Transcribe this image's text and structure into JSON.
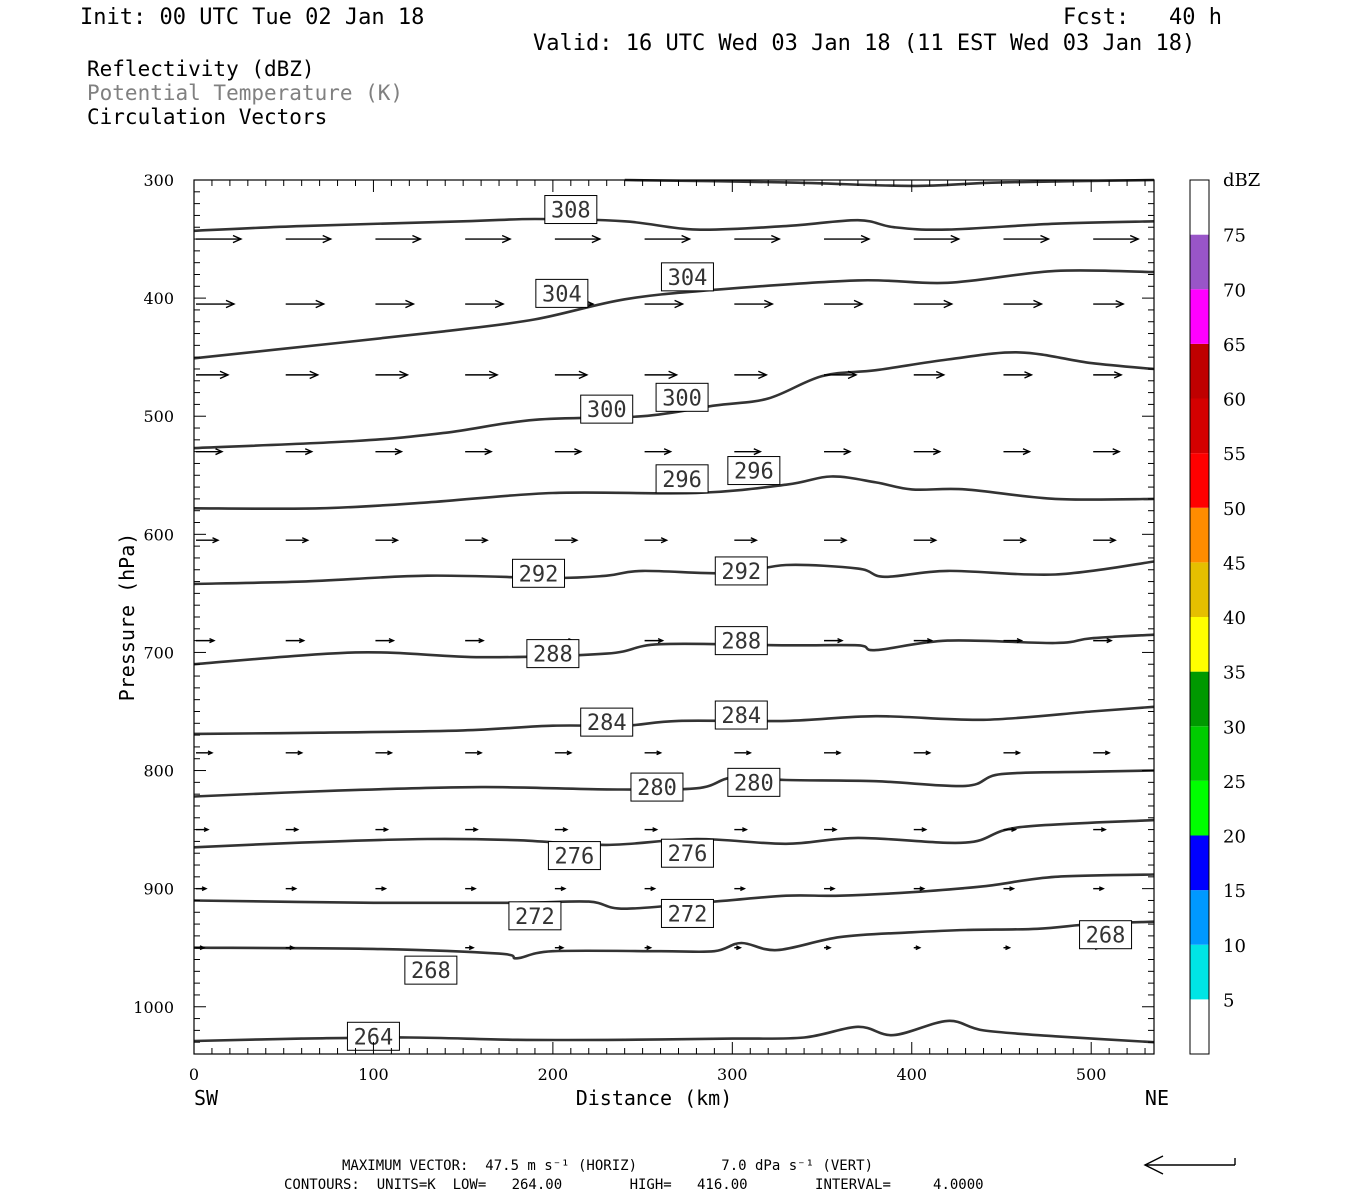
{
  "header": {
    "init": "Init: 00 UTC Tue 02 Jan 18",
    "fcst": "Fcst:   40 h",
    "valid": "Valid: 16 UTC Wed 03 Jan 18 (11 EST Wed 03 Jan 18)"
  },
  "legend": {
    "line1": "Reflectivity (dBZ)",
    "line2": "Potential Temperature (K)",
    "line3": "Circulation Vectors"
  },
  "footer": {
    "max_vector": "MAXIMUM VECTOR:  47.5 m s⁻¹ (HORIZ)          7.0 dPa s⁻¹ (VERT)",
    "contours": "CONTOURS:  UNITS=K  LOW=   264.00        HIGH=   416.00        INTERVAL=     4.0000"
  },
  "colors": {
    "contour": "#333333",
    "gray_text": "#808080",
    "dbz": [
      "#ffffff",
      "#00e5e5",
      "#0099ff",
      "#0000ff",
      "#00ff00",
      "#00cc00",
      "#009900",
      "#ffff00",
      "#e5bf00",
      "#ff8c00",
      "#ff0000",
      "#d40000",
      "#bf0000",
      "#ff00ff",
      "#9955c8",
      "#ffffff"
    ]
  },
  "chart_data": {
    "type": "cross-section",
    "xlabel": "Distance (km)",
    "ylabel": "Pressure (hPa)",
    "xlim": [
      0,
      535
    ],
    "ylim": [
      1040,
      300
    ],
    "x_ticks": [
      0,
      100,
      200,
      300,
      400,
      500
    ],
    "y_ticks": [
      300,
      400,
      500,
      600,
      700,
      800,
      900,
      1000
    ],
    "x_end_labels": [
      "SW",
      "NE"
    ],
    "colorbar": {
      "title": "dBZ",
      "levels": [
        5,
        10,
        15,
        20,
        25,
        30,
        35,
        40,
        45,
        50,
        55,
        60,
        65,
        70,
        75
      ]
    },
    "contours": [
      {
        "level": 264,
        "points": [
          [
            0,
            1029
          ],
          [
            60,
            1027
          ],
          [
            120,
            1026
          ],
          [
            180,
            1028
          ],
          [
            240,
            1028
          ],
          [
            300,
            1027
          ],
          [
            340,
            1026
          ],
          [
            370,
            1017
          ],
          [
            390,
            1024
          ],
          [
            420,
            1012
          ],
          [
            440,
            1020
          ],
          [
            480,
            1025
          ],
          [
            535,
            1030
          ]
        ]
      },
      {
        "level": 268,
        "points": [
          [
            0,
            950
          ],
          [
            100,
            951
          ],
          [
            170,
            955
          ],
          [
            180,
            959
          ],
          [
            200,
            953
          ],
          [
            260,
            953
          ],
          [
            290,
            953
          ],
          [
            305,
            946
          ],
          [
            325,
            952
          ],
          [
            360,
            941
          ],
          [
            400,
            937
          ],
          [
            430,
            935
          ],
          [
            470,
            934
          ],
          [
            500,
            930
          ],
          [
            535,
            928
          ]
        ]
      },
      {
        "level": 272,
        "points": [
          [
            0,
            910
          ],
          [
            100,
            912
          ],
          [
            180,
            912
          ],
          [
            220,
            911
          ],
          [
            240,
            917
          ],
          [
            290,
            911
          ],
          [
            330,
            906
          ],
          [
            360,
            906
          ],
          [
            400,
            903
          ],
          [
            440,
            898
          ],
          [
            480,
            890
          ],
          [
            535,
            888
          ]
        ]
      },
      {
        "level": 276,
        "points": [
          [
            0,
            865
          ],
          [
            60,
            861
          ],
          [
            130,
            858
          ],
          [
            180,
            859
          ],
          [
            230,
            863
          ],
          [
            280,
            858
          ],
          [
            330,
            862
          ],
          [
            370,
            857
          ],
          [
            430,
            861
          ],
          [
            460,
            848
          ],
          [
            535,
            842
          ]
        ]
      },
      {
        "level": 280,
        "points": [
          [
            0,
            822
          ],
          [
            80,
            817
          ],
          [
            160,
            814
          ],
          [
            230,
            816
          ],
          [
            280,
            815
          ],
          [
            300,
            806
          ],
          [
            330,
            808
          ],
          [
            380,
            809
          ],
          [
            430,
            813
          ],
          [
            450,
            803
          ],
          [
            500,
            801
          ],
          [
            535,
            800
          ]
        ]
      },
      {
        "level": 284,
        "points": [
          [
            0,
            769
          ],
          [
            70,
            768
          ],
          [
            150,
            766
          ],
          [
            200,
            762
          ],
          [
            240,
            762
          ],
          [
            270,
            758
          ],
          [
            330,
            758
          ],
          [
            380,
            754
          ],
          [
            440,
            757
          ],
          [
            500,
            750
          ],
          [
            535,
            746
          ]
        ]
      },
      {
        "level": 288,
        "points": [
          [
            0,
            710
          ],
          [
            90,
            700
          ],
          [
            160,
            704
          ],
          [
            230,
            701
          ],
          [
            260,
            693
          ],
          [
            330,
            694
          ],
          [
            370,
            694
          ],
          [
            380,
            698
          ],
          [
            420,
            690
          ],
          [
            480,
            692
          ],
          [
            500,
            688
          ],
          [
            535,
            685
          ]
        ]
      },
      {
        "level": 292,
        "points": [
          [
            0,
            642
          ],
          [
            60,
            640
          ],
          [
            130,
            635
          ],
          [
            200,
            637
          ],
          [
            230,
            635
          ],
          [
            250,
            631
          ],
          [
            300,
            633
          ],
          [
            330,
            626
          ],
          [
            370,
            629
          ],
          [
            385,
            636
          ],
          [
            420,
            631
          ],
          [
            480,
            634
          ],
          [
            535,
            623
          ]
        ]
      },
      {
        "level": 296,
        "points": [
          [
            0,
            578
          ],
          [
            70,
            578
          ],
          [
            130,
            573
          ],
          [
            200,
            565
          ],
          [
            280,
            565
          ],
          [
            330,
            558
          ],
          [
            355,
            551
          ],
          [
            380,
            556
          ],
          [
            400,
            562
          ],
          [
            430,
            562
          ],
          [
            480,
            570
          ],
          [
            535,
            570
          ]
        ]
      },
      {
        "level": 300,
        "points": [
          [
            0,
            527
          ],
          [
            90,
            521
          ],
          [
            140,
            514
          ],
          [
            190,
            503
          ],
          [
            250,
            500
          ],
          [
            290,
            491
          ],
          [
            320,
            485
          ],
          [
            350,
            466
          ],
          [
            380,
            461
          ],
          [
            420,
            452
          ],
          [
            460,
            446
          ],
          [
            500,
            455
          ],
          [
            535,
            460
          ]
        ]
      },
      {
        "level": 304,
        "points": [
          [
            0,
            451
          ],
          [
            80,
            438
          ],
          [
            140,
            428
          ],
          [
            190,
            418
          ],
          [
            240,
            401
          ],
          [
            290,
            393
          ],
          [
            370,
            385
          ],
          [
            420,
            387
          ],
          [
            480,
            377
          ],
          [
            535,
            378
          ]
        ]
      },
      {
        "level": 308,
        "points": [
          [
            0,
            343
          ],
          [
            60,
            339
          ],
          [
            150,
            335
          ],
          [
            190,
            333
          ],
          [
            240,
            335
          ],
          [
            280,
            342
          ],
          [
            330,
            339
          ],
          [
            370,
            334
          ],
          [
            390,
            340
          ],
          [
            420,
            342
          ],
          [
            480,
            337
          ],
          [
            535,
            335
          ]
        ]
      },
      {
        "level": 312,
        "points": [
          [
            240,
            300
          ],
          [
            330,
            302
          ],
          [
            400,
            305
          ],
          [
            450,
            302
          ],
          [
            535,
            300
          ]
        ]
      }
    ],
    "contour_labels": [
      {
        "level": 308,
        "x": 210,
        "p": 325
      },
      {
        "level": 304,
        "x": 205,
        "p": 396
      },
      {
        "level": 304,
        "x": 275,
        "p": 382
      },
      {
        "level": 300,
        "x": 230,
        "p": 494
      },
      {
        "level": 300,
        "x": 272,
        "p": 484
      },
      {
        "level": 296,
        "x": 272,
        "p": 553
      },
      {
        "level": 296,
        "x": 312,
        "p": 546
      },
      {
        "level": 292,
        "x": 192,
        "p": 633
      },
      {
        "level": 292,
        "x": 305,
        "p": 631
      },
      {
        "level": 288,
        "x": 200,
        "p": 701
      },
      {
        "level": 288,
        "x": 305,
        "p": 690
      },
      {
        "level": 284,
        "x": 230,
        "p": 759
      },
      {
        "level": 284,
        "x": 305,
        "p": 753
      },
      {
        "level": 280,
        "x": 258,
        "p": 814
      },
      {
        "level": 280,
        "x": 312,
        "p": 810
      },
      {
        "level": 276,
        "x": 212,
        "p": 872
      },
      {
        "level": 276,
        "x": 275,
        "p": 870
      },
      {
        "level": 272,
        "x": 190,
        "p": 923
      },
      {
        "level": 272,
        "x": 275,
        "p": 921
      },
      {
        "level": 268,
        "x": 132,
        "p": 969
      },
      {
        "level": 268,
        "x": 508,
        "p": 939
      },
      {
        "level": 264,
        "x": 100,
        "p": 1025
      }
    ],
    "vectors": [
      [
        0,
        350,
        45,
        0
      ],
      [
        50,
        350,
        45,
        0
      ],
      [
        100,
        350,
        45,
        0
      ],
      [
        150,
        350,
        45,
        0
      ],
      [
        200,
        350,
        45,
        0
      ],
      [
        250,
        350,
        45,
        0
      ],
      [
        300,
        350,
        45,
        0
      ],
      [
        350,
        350,
        45,
        0
      ],
      [
        400,
        350,
        45,
        0
      ],
      [
        450,
        350,
        45,
        0
      ],
      [
        500,
        350,
        45,
        0
      ],
      [
        0,
        405,
        38,
        0
      ],
      [
        50,
        405,
        38,
        0
      ],
      [
        100,
        405,
        38,
        0
      ],
      [
        150,
        405,
        38,
        0
      ],
      [
        200,
        405,
        38,
        0
      ],
      [
        250,
        405,
        38,
        0
      ],
      [
        300,
        405,
        38,
        0
      ],
      [
        350,
        405,
        38,
        0
      ],
      [
        400,
        405,
        38,
        0
      ],
      [
        450,
        405,
        38,
        0
      ],
      [
        500,
        405,
        30,
        0
      ],
      [
        0,
        465,
        32,
        0
      ],
      [
        50,
        465,
        32,
        0
      ],
      [
        100,
        465,
        32,
        0
      ],
      [
        150,
        465,
        32,
        0
      ],
      [
        200,
        465,
        32,
        0
      ],
      [
        250,
        465,
        32,
        0
      ],
      [
        300,
        465,
        32,
        0
      ],
      [
        350,
        465,
        32,
        0
      ],
      [
        400,
        465,
        30,
        0
      ],
      [
        450,
        465,
        28,
        0
      ],
      [
        500,
        465,
        28,
        0
      ],
      [
        0,
        530,
        26,
        0
      ],
      [
        50,
        530,
        26,
        0
      ],
      [
        100,
        530,
        26,
        0
      ],
      [
        150,
        530,
        26,
        0
      ],
      [
        200,
        530,
        26,
        0
      ],
      [
        250,
        530,
        26,
        0
      ],
      [
        300,
        530,
        26,
        0
      ],
      [
        350,
        530,
        26,
        0
      ],
      [
        400,
        530,
        26,
        0
      ],
      [
        450,
        530,
        26,
        0
      ],
      [
        500,
        530,
        26,
        0
      ],
      [
        0,
        605,
        22,
        0
      ],
      [
        50,
        605,
        22,
        0
      ],
      [
        100,
        605,
        22,
        0
      ],
      [
        150,
        605,
        22,
        0
      ],
      [
        200,
        605,
        22,
        0
      ],
      [
        250,
        605,
        22,
        0
      ],
      [
        300,
        605,
        22,
        0
      ],
      [
        350,
        605,
        22,
        0
      ],
      [
        400,
        605,
        22,
        0
      ],
      [
        450,
        605,
        22,
        0
      ],
      [
        500,
        605,
        22,
        0
      ],
      [
        0,
        690,
        18,
        0
      ],
      [
        50,
        690,
        18,
        0
      ],
      [
        100,
        690,
        18,
        0
      ],
      [
        150,
        690,
        18,
        0
      ],
      [
        200,
        690,
        18,
        0
      ],
      [
        250,
        690,
        18,
        0
      ],
      [
        300,
        690,
        18,
        0
      ],
      [
        350,
        690,
        18,
        0
      ],
      [
        400,
        690,
        18,
        0
      ],
      [
        450,
        690,
        18,
        0
      ],
      [
        500,
        690,
        18,
        0
      ],
      [
        0,
        785,
        16,
        0
      ],
      [
        50,
        785,
        16,
        0
      ],
      [
        100,
        785,
        16,
        0
      ],
      [
        150,
        785,
        16,
        0
      ],
      [
        200,
        785,
        16,
        0
      ],
      [
        250,
        785,
        16,
        0
      ],
      [
        300,
        785,
        16,
        0
      ],
      [
        350,
        785,
        16,
        0
      ],
      [
        400,
        785,
        16,
        0
      ],
      [
        450,
        785,
        16,
        0
      ],
      [
        500,
        785,
        16,
        0
      ],
      [
        0,
        850,
        12,
        0
      ],
      [
        50,
        850,
        12,
        0
      ],
      [
        100,
        850,
        12,
        0
      ],
      [
        150,
        850,
        12,
        0
      ],
      [
        200,
        850,
        12,
        0
      ],
      [
        250,
        850,
        12,
        0
      ],
      [
        300,
        850,
        12,
        0
      ],
      [
        350,
        850,
        12,
        0
      ],
      [
        400,
        850,
        12,
        0
      ],
      [
        450,
        850,
        12,
        0
      ],
      [
        500,
        850,
        12,
        0
      ],
      [
        0,
        900,
        10,
        0
      ],
      [
        50,
        900,
        10,
        0
      ],
      [
        100,
        900,
        10,
        0
      ],
      [
        150,
        900,
        10,
        0
      ],
      [
        200,
        900,
        10,
        0
      ],
      [
        250,
        900,
        10,
        0
      ],
      [
        300,
        900,
        10,
        0
      ],
      [
        350,
        900,
        10,
        0
      ],
      [
        400,
        900,
        10,
        0
      ],
      [
        450,
        900,
        10,
        0
      ],
      [
        500,
        900,
        10,
        0
      ],
      [
        0,
        950,
        8,
        0
      ],
      [
        50,
        950,
        8,
        0
      ],
      [
        150,
        950,
        8,
        0
      ],
      [
        200,
        950,
        8,
        0
      ],
      [
        250,
        950,
        6,
        0
      ],
      [
        300,
        950,
        6,
        0
      ],
      [
        350,
        950,
        6,
        0
      ],
      [
        400,
        950,
        6,
        0
      ],
      [
        450,
        950,
        6,
        0
      ],
      [
        500,
        950,
        6,
        0
      ]
    ]
  }
}
